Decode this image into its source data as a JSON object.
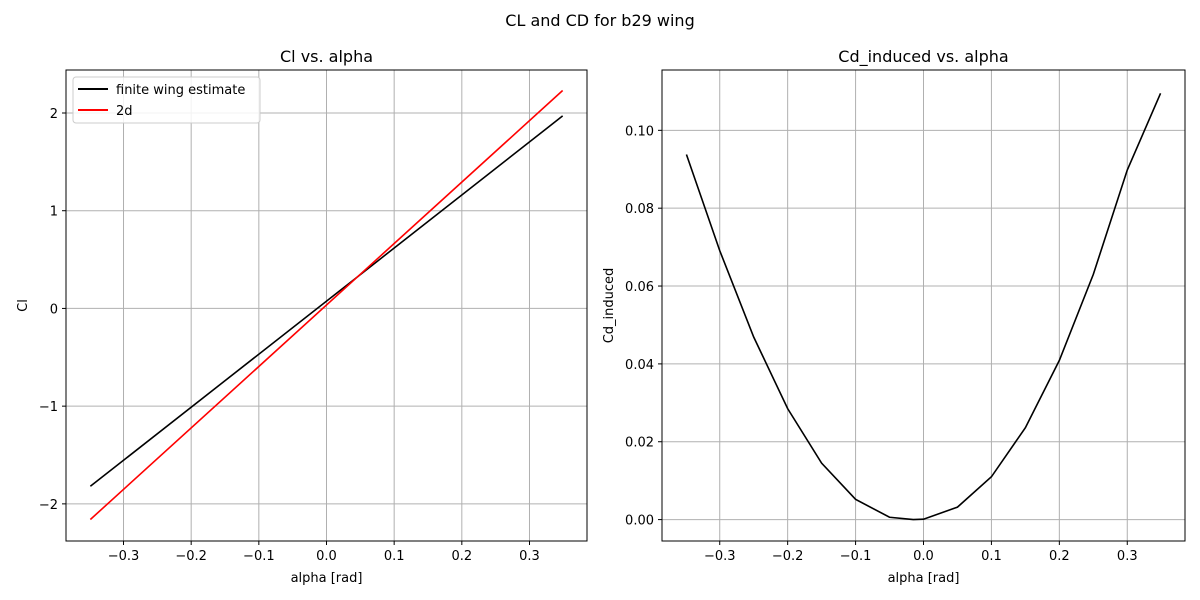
{
  "figure_title": "CL and CD for b29 wing",
  "chart_data": [
    {
      "type": "line",
      "title": "Cl vs. alpha",
      "xlabel": "alpha [rad]",
      "ylabel": "Cl",
      "xlim": [
        -0.385,
        0.385
      ],
      "ylim": [
        -2.38,
        2.44
      ],
      "xticks": [
        -0.3,
        -0.2,
        -0.1,
        0.0,
        0.1,
        0.2,
        0.3
      ],
      "xtick_labels": [
        "−0.3",
        "−0.2",
        "−0.1",
        "0.0",
        "0.1",
        "0.2",
        "0.3"
      ],
      "yticks": [
        -2,
        -1,
        0,
        1,
        2
      ],
      "ytick_labels": [
        "−2",
        "−1",
        "0",
        "1",
        "2"
      ],
      "grid": true,
      "legend": "upper-left",
      "series": [
        {
          "name": "finite wing estimate",
          "color": "#000000",
          "x": [
            -0.349,
            0.349
          ],
          "y": [
            -1.82,
            1.97
          ]
        },
        {
          "name": "2d",
          "color": "#ff0000",
          "x": [
            -0.349,
            0.349
          ],
          "y": [
            -2.16,
            2.23
          ]
        }
      ]
    },
    {
      "type": "line",
      "title": "Cd_induced vs. alpha",
      "xlabel": "alpha [rad]",
      "ylabel": "Cd_induced",
      "xlim": [
        -0.385,
        0.385
      ],
      "ylim": [
        -0.0055,
        0.1155
      ],
      "xticks": [
        -0.3,
        -0.2,
        -0.1,
        0.0,
        0.1,
        0.2,
        0.3
      ],
      "xtick_labels": [
        "−0.3",
        "−0.2",
        "−0.1",
        "0.0",
        "0.1",
        "0.2",
        "0.3"
      ],
      "yticks": [
        0.0,
        0.02,
        0.04,
        0.06,
        0.08,
        0.1
      ],
      "ytick_labels": [
        "0.00",
        "0.02",
        "0.04",
        "0.06",
        "0.08",
        "0.10"
      ],
      "grid": true,
      "series": [
        {
          "color": "#000000",
          "x": [
            -0.349,
            -0.3,
            -0.25,
            -0.2,
            -0.15,
            -0.1,
            -0.05,
            -0.015,
            0.0,
            0.05,
            0.1,
            0.15,
            0.2,
            0.25,
            0.3,
            0.349
          ],
          "y": [
            0.0938,
            0.0691,
            0.0469,
            0.0285,
            0.0145,
            0.0052,
            0.0006,
            0.0,
            0.0001,
            0.0032,
            0.011,
            0.0236,
            0.0409,
            0.063,
            0.0898,
            0.1095
          ]
        }
      ]
    }
  ]
}
